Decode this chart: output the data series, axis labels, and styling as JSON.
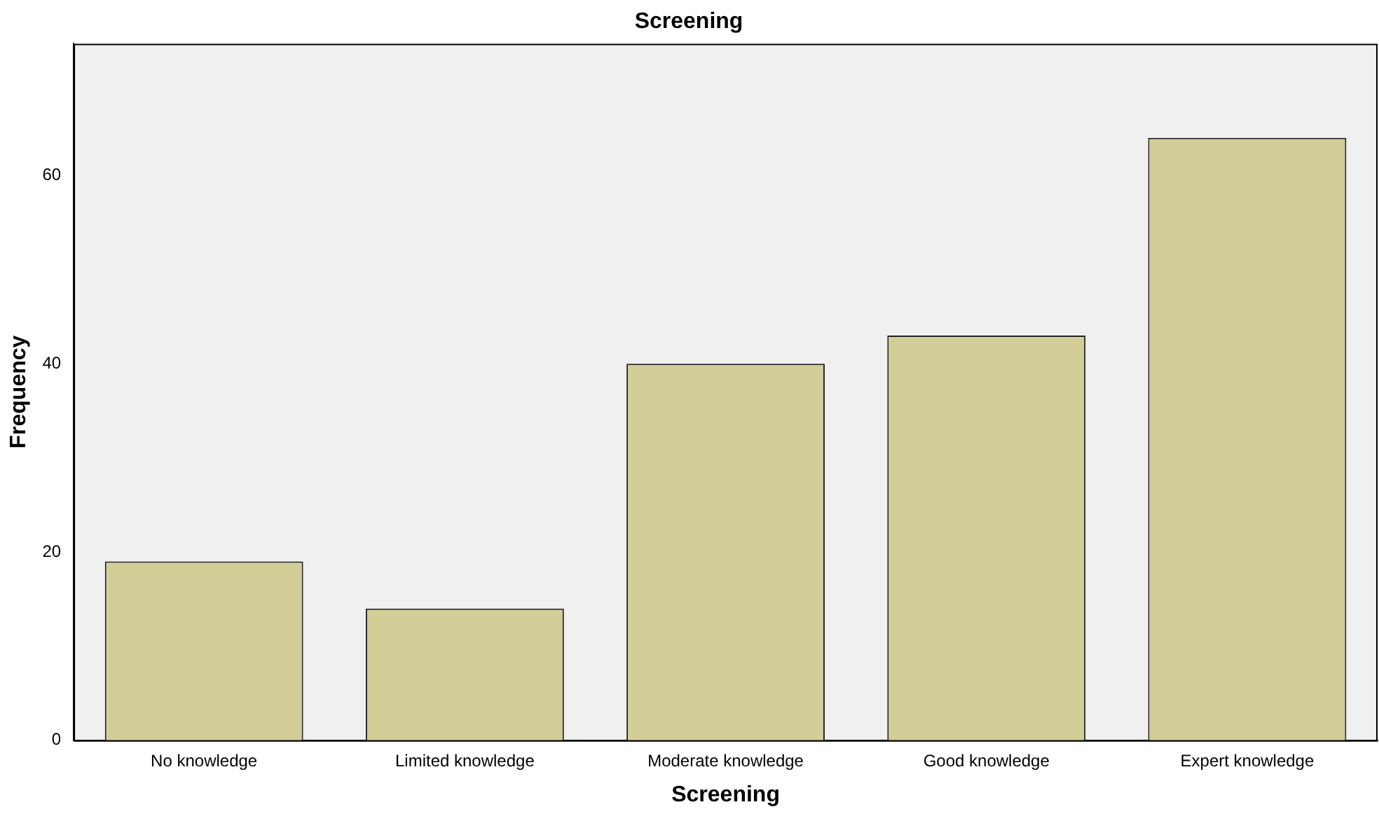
{
  "chart_data": {
    "type": "bar",
    "title": "Screening",
    "xlabel": "Screening",
    "ylabel": "Frequency",
    "categories": [
      "No knowledge",
      "Limited knowledge",
      "Moderate knowledge",
      "Good knowledge",
      "Expert knowledge"
    ],
    "values": [
      19,
      14,
      40,
      43,
      64
    ],
    "color": "#d3ce97",
    "ylim": [
      0,
      74
    ],
    "yticks": [
      0,
      20,
      40,
      60
    ],
    "grid": false,
    "legend": false
  }
}
